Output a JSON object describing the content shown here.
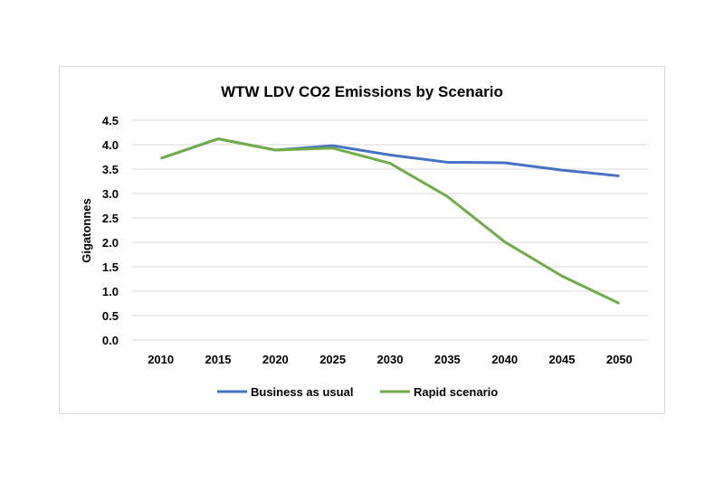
{
  "chart_data": {
    "type": "line",
    "title": "WTW LDV CO2 Emissions by Scenario",
    "xlabel": "",
    "ylabel": "Gigatonnes",
    "categories": [
      "2010",
      "2015",
      "2020",
      "2025",
      "2030",
      "2035",
      "2040",
      "2045",
      "2050"
    ],
    "yticks": [
      "0.0",
      "0.5",
      "1.0",
      "1.5",
      "2.0",
      "2.5",
      "3.0",
      "3.5",
      "4.0",
      "4.5"
    ],
    "ylim": [
      0,
      4.5
    ],
    "grid": true,
    "legend_position": "bottom",
    "series": [
      {
        "name": "Business as usual",
        "color": "#4472c4",
        "values": [
          3.72,
          4.12,
          3.89,
          3.98,
          3.79,
          3.64,
          3.63,
          3.48,
          3.36
        ]
      },
      {
        "name": "Rapid scenario",
        "color": "#70ad47",
        "values": [
          3.72,
          4.12,
          3.89,
          3.93,
          3.62,
          2.94,
          2.01,
          1.31,
          0.75
        ]
      }
    ]
  }
}
